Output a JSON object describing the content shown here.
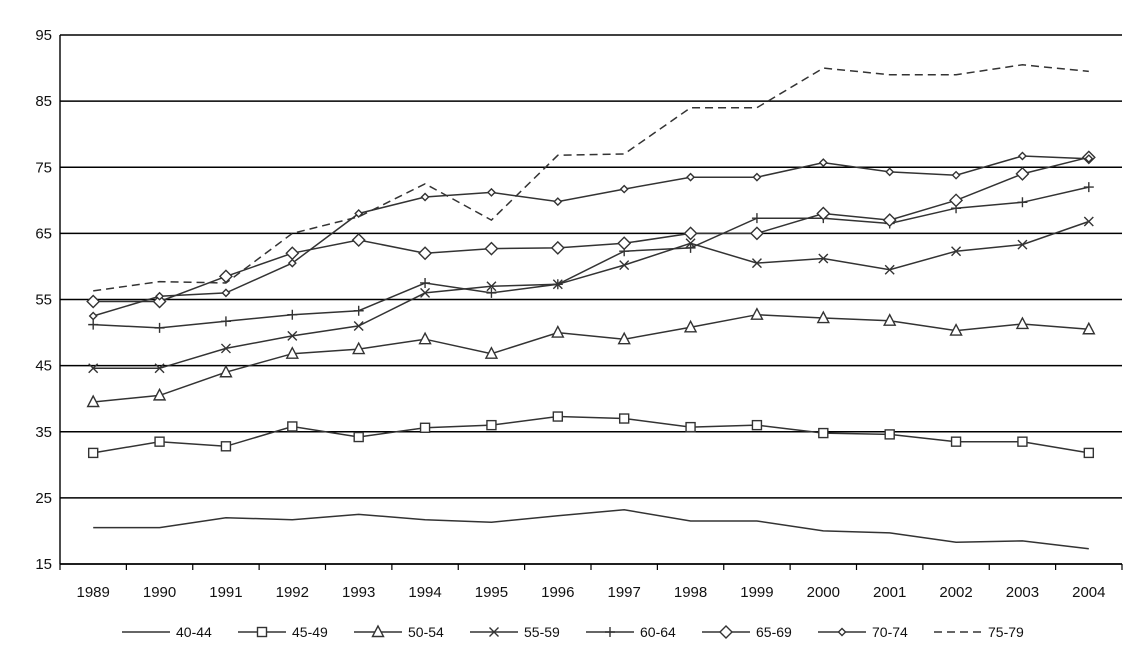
{
  "chart_data": {
    "type": "line",
    "title": "",
    "xlabel": "",
    "ylabel": "",
    "x": [
      "1989",
      "1990",
      "1991",
      "1992",
      "1993",
      "1994",
      "1995",
      "1996",
      "1997",
      "1998",
      "1999",
      "2000",
      "2001",
      "2002",
      "2003",
      "2004"
    ],
    "y_ticks": [
      "15",
      "25",
      "35",
      "45",
      "55",
      "65",
      "75",
      "85",
      "95"
    ],
    "ylim": [
      15,
      95
    ],
    "grid": "horizontal",
    "legend_position": "bottom",
    "series": [
      {
        "name": "40-44",
        "marker": "none",
        "dash": "solid",
        "values": [
          20.5,
          20.5,
          22.0,
          21.7,
          22.5,
          21.7,
          21.3,
          22.3,
          23.2,
          21.5,
          21.5,
          20.0,
          19.7,
          18.3,
          18.5,
          17.3
        ]
      },
      {
        "name": "45-49",
        "marker": "square",
        "dash": "solid",
        "values": [
          31.8,
          33.5,
          32.8,
          35.8,
          34.2,
          35.6,
          36.0,
          37.3,
          37.0,
          35.7,
          36.0,
          34.8,
          34.6,
          33.5,
          33.5,
          31.8
        ]
      },
      {
        "name": "50-54",
        "marker": "triangle",
        "dash": "solid",
        "values": [
          39.5,
          40.5,
          44.0,
          46.8,
          47.5,
          49.0,
          46.8,
          50.0,
          49.0,
          50.8,
          52.7,
          52.2,
          51.8,
          50.3,
          51.3,
          50.5
        ]
      },
      {
        "name": "55-59",
        "marker": "x",
        "dash": "solid",
        "values": [
          44.6,
          44.6,
          47.6,
          49.5,
          51.0,
          56.0,
          57.0,
          57.3,
          60.2,
          63.5,
          60.5,
          61.2,
          59.5,
          62.3,
          63.3,
          66.8
        ]
      },
      {
        "name": "60-64",
        "marker": "plus",
        "dash": "solid",
        "values": [
          51.2,
          50.7,
          51.7,
          52.7,
          53.3,
          57.5,
          56.0,
          57.3,
          62.3,
          62.8,
          67.3,
          67.3,
          66.5,
          68.8,
          69.7,
          72.0
        ]
      },
      {
        "name": "65-69",
        "marker": "diamond",
        "dash": "solid",
        "values": [
          54.7,
          54.7,
          58.5,
          62.0,
          64.0,
          62.0,
          62.7,
          62.8,
          63.5,
          65.0,
          65.0,
          68.0,
          67.0,
          70.0,
          74.0,
          76.5
        ]
      },
      {
        "name": "70-74",
        "marker": "diamond-small",
        "dash": "solid",
        "values": [
          52.5,
          55.5,
          56.0,
          60.5,
          68.0,
          70.5,
          71.2,
          69.8,
          71.7,
          73.5,
          73.5,
          75.7,
          74.3,
          73.8,
          76.7,
          76.3
        ]
      },
      {
        "name": "75-79",
        "marker": "none",
        "dash": "dashed",
        "values": [
          56.3,
          57.7,
          57.5,
          65.0,
          67.5,
          72.5,
          67.0,
          76.8,
          77.0,
          84.0,
          84.0,
          90.0,
          89.0,
          89.0,
          90.5,
          89.5
        ]
      }
    ]
  }
}
